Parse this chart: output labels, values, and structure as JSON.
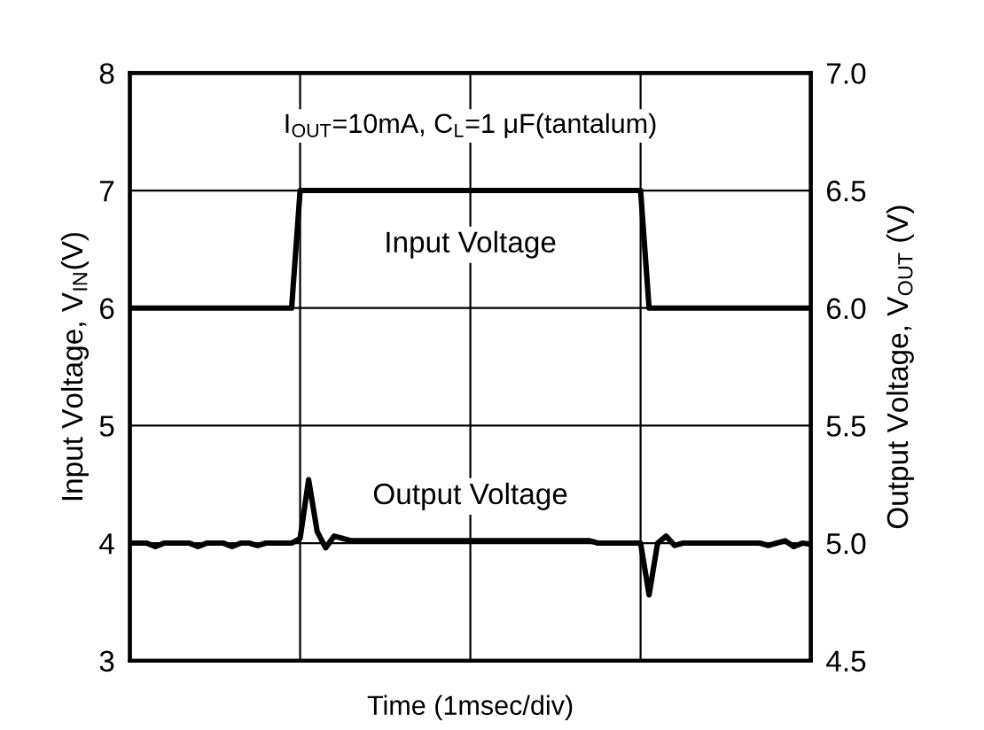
{
  "chart_data": {
    "type": "line",
    "xlabel": "Time (1msec/div)",
    "ylabel": "Input Voltage, V$_{IN}$(V)",
    "y2label": "Output Voltage, V$_{OUT}$ (V)",
    "annotations": [
      "I$_{OUT}$=10mA, C$_{L}$=1 μF(tantalum)"
    ],
    "categories": [
      null,
      null,
      null,
      null,
      null,
      null,
      null,
      null,
      null,
      null,
      null,
      null,
      null,
      null,
      null,
      null,
      null,
      null,
      null,
      null,
      null,
      null,
      null,
      null,
      null,
      null,
      null,
      null,
      null,
      null,
      null,
      null,
      null,
      null,
      null,
      null,
      null,
      null,
      null,
      null,
      null,
      null,
      null,
      null,
      null,
      null,
      null,
      null,
      null,
      null,
      null,
      null,
      null,
      null,
      null,
      null,
      null,
      null,
      null,
      null,
      null,
      null,
      null,
      null,
      null,
      null,
      null,
      null,
      null,
      null,
      null,
      null,
      null,
      null,
      null,
      null,
      null,
      null,
      null,
      null,
      null
    ],
    "ylim": [
      3,
      8
    ],
    "yticks": [
      3,
      4,
      5,
      6,
      7,
      8
    ],
    "y2lim": [
      4.5,
      7.0
    ],
    "y2ticks": [
      4.5,
      {
        "value": 5,
        "label": "5.0"
      },
      5.5,
      {
        "value": 6,
        "label": "6.0"
      },
      6.5,
      {
        "value": 7,
        "label": "7.0"
      }
    ],
    "grid": true,
    "legend": false,
    "line_style": "solid",
    "marker": "none",
    "series": [
      {
        "name": "Input Voltage",
        "color": "#000000",
        "values": [
          6,
          6,
          6,
          6,
          6,
          6,
          6,
          6,
          6,
          6,
          6,
          6,
          6,
          6,
          6,
          6,
          6,
          6,
          6,
          6,
          7,
          7,
          7,
          7,
          7,
          7,
          7,
          7,
          7,
          7,
          7,
          7,
          7,
          7,
          7,
          7,
          7,
          7,
          7,
          7,
          7,
          7,
          7,
          7,
          7,
          7,
          7,
          7,
          7,
          7,
          7,
          7,
          7,
          7,
          7,
          7,
          7,
          7,
          7,
          7,
          7,
          6,
          6,
          6,
          6,
          6,
          6,
          6,
          6,
          6,
          6,
          6,
          6,
          6,
          6,
          6,
          6,
          6,
          6,
          6,
          6
        ]
      },
      {
        "name": "Output Voltage",
        "axis": "y2",
        "color": "#000000",
        "values": [
          5.0,
          5.0,
          5.0,
          4.985,
          5.0,
          5.0,
          5.0,
          5.0,
          4.985,
          5.0,
          5.0,
          5.0,
          4.985,
          5.0,
          5.0,
          4.99,
          5.0,
          5.0,
          5.0,
          5.0,
          5.02,
          5.27,
          5.05,
          4.98,
          5.03,
          5.02,
          5.01,
          5.01,
          5.01,
          5.01,
          5.01,
          5.01,
          5.01,
          5.01,
          5.01,
          5.01,
          5.01,
          5.01,
          5.01,
          5.01,
          5.01,
          5.01,
          5.01,
          5.01,
          5.01,
          5.01,
          5.01,
          5.01,
          5.01,
          5.01,
          5.01,
          5.01,
          5.01,
          5.01,
          5.01,
          5.0,
          5.0,
          5.0,
          5.0,
          5.0,
          5.0,
          4.78,
          5.0,
          5.03,
          4.99,
          5.0,
          5.0,
          5.0,
          5.0,
          5.0,
          5.0,
          5.0,
          5.0,
          5.0,
          5.0,
          4.99,
          5.0,
          5.01,
          4.985,
          5.0,
          4.995
        ]
      }
    ]
  }
}
